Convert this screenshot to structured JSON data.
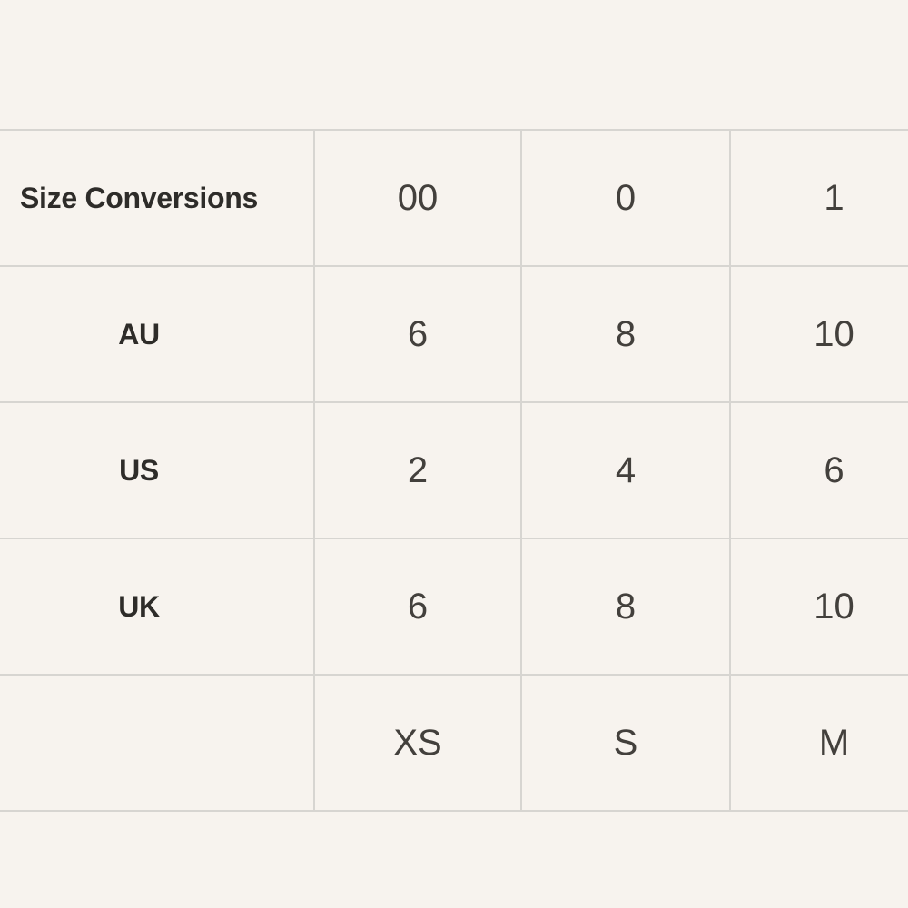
{
  "page": {
    "background_color": "#f7f3ee"
  },
  "colors": {
    "background": "#f7f3ee",
    "border": "#d7d5d1",
    "label_text": "#2e2c29",
    "value_text": "#43403c"
  },
  "table": {
    "title": "Size Conversions",
    "header": {
      "label": "Size Conversions",
      "values": [
        "00",
        "0",
        "1"
      ]
    },
    "rows": [
      {
        "label": "AU",
        "values": [
          "6",
          "8",
          "10"
        ]
      },
      {
        "label": "US",
        "values": [
          "2",
          "4",
          "6"
        ]
      },
      {
        "label": "UK",
        "values": [
          "6",
          "8",
          "10"
        ]
      },
      {
        "label": "",
        "values": [
          "XS",
          "S",
          "M"
        ]
      }
    ]
  }
}
